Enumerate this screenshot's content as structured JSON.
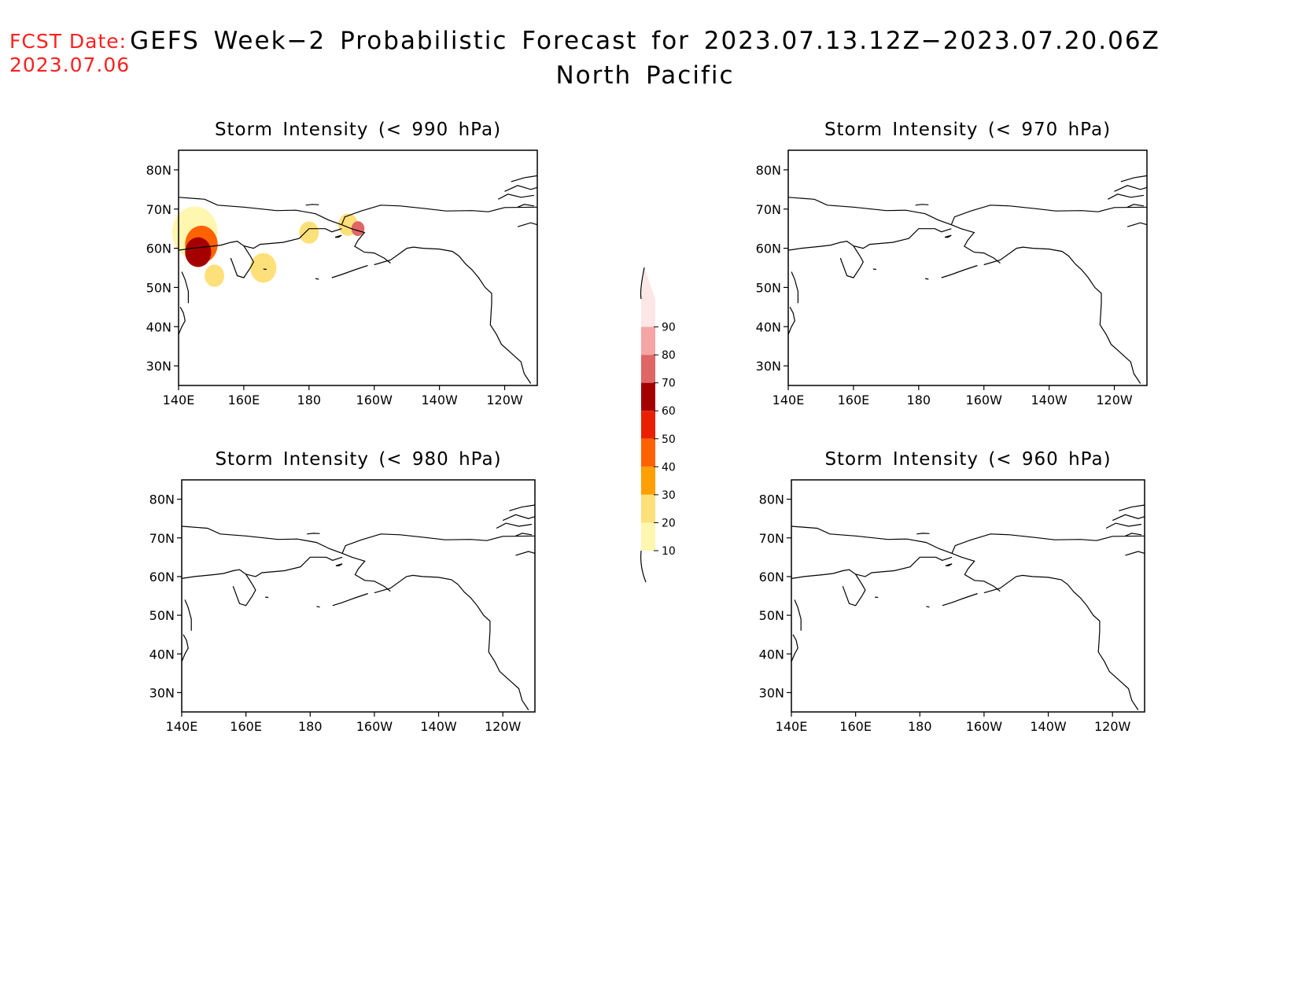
{
  "header": {
    "fcst_label": "FCST Date:",
    "fcst_date": "2023.07.06",
    "title": "GEFS Week−2 Probabilistic Forecast for 2023.07.13.12Z−2023.07.20.06Z",
    "region": "North Pacific"
  },
  "colors": {
    "header_red": "#ff2020",
    "scale": [
      "#fff6b0",
      "#fde07a",
      "#ff9f00",
      "#ff6200",
      "#e82000",
      "#a50000",
      "#de6666",
      "#f5a5a5",
      "#fde6e6"
    ]
  },
  "chart_data": [
    {
      "type": "heatmap",
      "panel": "top-left",
      "title": "Storm Intensity (< 990 hPa)",
      "x_ticks": [
        "140E",
        "160E",
        "180",
        "160W",
        "140W",
        "120W"
      ],
      "y_ticks": [
        "80N",
        "70N",
        "60N",
        "50N",
        "40N",
        "30N"
      ],
      "xlim": [
        140,
        250
      ],
      "ylim": [
        25,
        85
      ],
      "areas": [
        {
          "lon": 146,
          "lat": 59,
          "prob": 60,
          "extent": 4
        },
        {
          "lon": 147,
          "lat": 61,
          "prob": 40,
          "extent": 5
        },
        {
          "lon": 145,
          "lat": 64,
          "prob": 10,
          "extent": 7
        },
        {
          "lon": 151,
          "lat": 53,
          "prob": 20,
          "extent": 3
        },
        {
          "lon": 166,
          "lat": 55,
          "prob": 20,
          "extent": 4
        },
        {
          "lon": 180,
          "lat": 64,
          "prob": 20,
          "extent": 3
        },
        {
          "lon": 195,
          "lat": 65,
          "prob": 70,
          "extent": 2
        },
        {
          "lon": 192,
          "lat": 66,
          "prob": 20,
          "extent": 3
        }
      ]
    },
    {
      "type": "heatmap",
      "panel": "top-right",
      "title": "Storm Intensity (< 970 hPa)",
      "x_ticks": [
        "140E",
        "160E",
        "180",
        "160W",
        "140W",
        "120W"
      ],
      "y_ticks": [
        "80N",
        "70N",
        "60N",
        "50N",
        "40N",
        "30N"
      ],
      "xlim": [
        140,
        250
      ],
      "ylim": [
        25,
        85
      ],
      "areas": []
    },
    {
      "type": "heatmap",
      "panel": "bottom-left",
      "title": "Storm Intensity (< 980 hPa)",
      "x_ticks": [
        "140E",
        "160E",
        "180",
        "160W",
        "140W",
        "120W"
      ],
      "y_ticks": [
        "80N",
        "70N",
        "60N",
        "50N",
        "40N",
        "30N"
      ],
      "xlim": [
        140,
        250
      ],
      "ylim": [
        25,
        85
      ],
      "areas": []
    },
    {
      "type": "heatmap",
      "panel": "bottom-right",
      "title": "Storm Intensity (< 960 hPa)",
      "x_ticks": [
        "140E",
        "160E",
        "180",
        "160W",
        "140W",
        "120W"
      ],
      "y_ticks": [
        "80N",
        "70N",
        "60N",
        "50N",
        "40N",
        "30N"
      ],
      "xlim": [
        140,
        250
      ],
      "ylim": [
        25,
        85
      ],
      "areas": []
    }
  ],
  "colorbar": {
    "levels": [
      10,
      20,
      30,
      40,
      50,
      60,
      70,
      80,
      90
    ]
  }
}
